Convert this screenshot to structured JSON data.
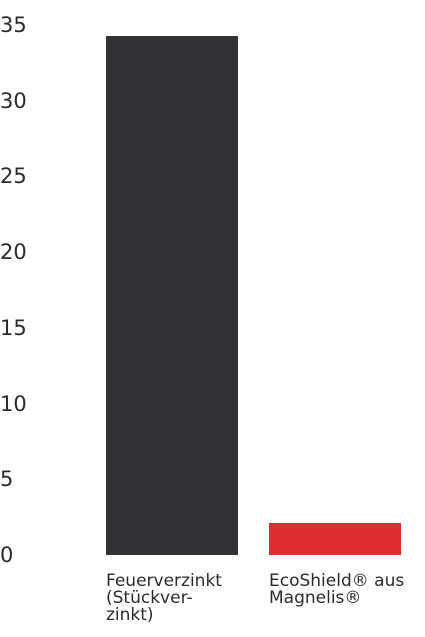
{
  "chart_data": {
    "type": "bar",
    "categories": [
      "Feuerverzinkt\n(Stückver-\nzinkt)",
      "EcoShield® aus\nMagnelis®"
    ],
    "values": [
      34.3,
      2.1
    ],
    "colors": [
      "#323135",
      "#dd2d2c"
    ],
    "ylim": [
      0,
      35
    ],
    "yticks": [
      "35",
      "30",
      "25",
      "20",
      "15",
      "10",
      "5",
      "0"
    ],
    "grid": false,
    "legend": "none"
  }
}
